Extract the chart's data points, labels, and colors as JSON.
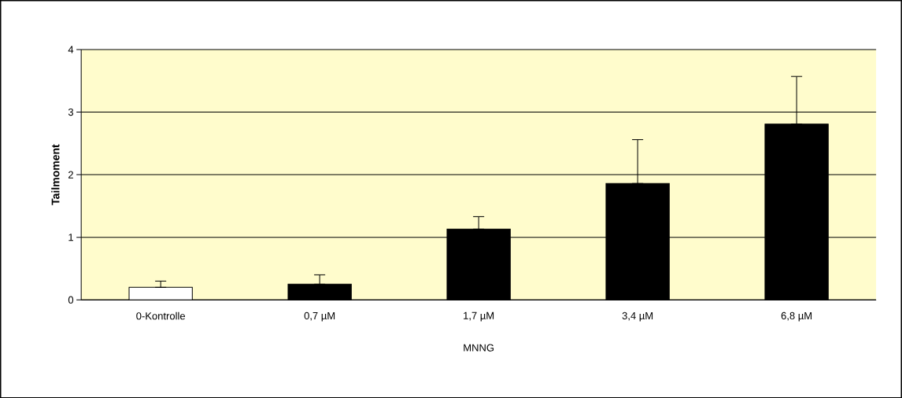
{
  "chart_data": {
    "type": "bar",
    "xlabel": "MNNG",
    "ylabel": "Tailmoment",
    "categories": [
      "0-Kontrolle",
      "0,7 µM",
      "1,7 µM",
      "3,4 µM",
      "6,8 µM"
    ],
    "values": [
      0.2,
      0.25,
      1.13,
      1.86,
      2.81
    ],
    "errors": [
      [
        0.2,
        0.3
      ],
      [
        0.25,
        0.4
      ],
      [
        1.13,
        1.33
      ],
      [
        1.86,
        2.56
      ],
      [
        2.81,
        3.57
      ]
    ],
    "colors": [
      "#ffffff",
      "#000000",
      "#000000",
      "#000000",
      "#000000"
    ],
    "ylim": [
      0,
      4
    ],
    "yticks": [
      0,
      1,
      2,
      3,
      4
    ],
    "grid": "y"
  }
}
